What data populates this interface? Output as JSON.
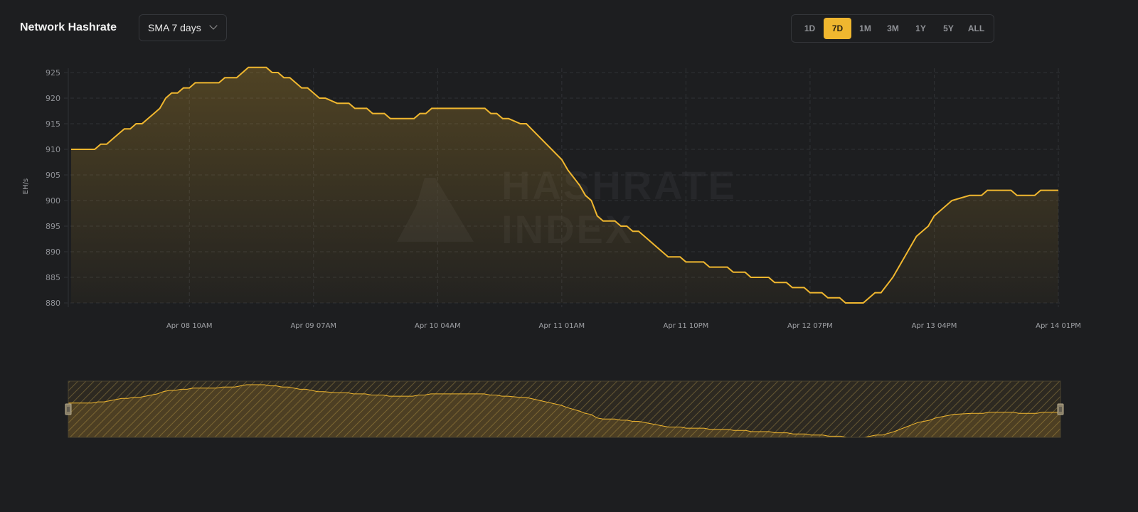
{
  "header": {
    "title": "Network Hashrate",
    "smoothing_select": "SMA 7 days",
    "ranges": [
      "1D",
      "7D",
      "1M",
      "3M",
      "1Y",
      "5Y",
      "ALL"
    ],
    "active_range": "7D"
  },
  "watermark": {
    "line1": "HASHRATE",
    "line2": "INDEX"
  },
  "colors": {
    "accent": "#f0b72f",
    "background": "#1d1e20"
  },
  "chart_data": {
    "type": "area",
    "title": "",
    "xlabel": "",
    "ylabel": "EH/s",
    "ylim": [
      880,
      925
    ],
    "yticks": [
      880,
      885,
      890,
      895,
      900,
      905,
      910,
      915,
      920,
      925
    ],
    "xticks": [
      "Apr 08 10AM",
      "Apr 09 07AM",
      "Apr 10 04AM",
      "Apr 11 01AM",
      "Apr 11 10PM",
      "Apr 12 07PM",
      "Apr 13 04PM",
      "Apr 14 01PM"
    ],
    "xrange": [
      "Apr 07 14:00",
      "Apr 14 13:00"
    ],
    "grid": true,
    "navigator": true,
    "points": [
      [
        "Apr 07 14:00",
        910
      ],
      [
        "Apr 07 18:00",
        910
      ],
      [
        "Apr 07 19:00",
        911
      ],
      [
        "Apr 07 20:00",
        911
      ],
      [
        "Apr 07 22:00",
        913
      ],
      [
        "Apr 07 23:00",
        914
      ],
      [
        "Apr 08 00:00",
        914
      ],
      [
        "Apr 08 01:00",
        915
      ],
      [
        "Apr 08 02:00",
        915
      ],
      [
        "Apr 08 04:00",
        917
      ],
      [
        "Apr 08 05:00",
        918
      ],
      [
        "Apr 08 06:00",
        920
      ],
      [
        "Apr 08 07:00",
        921
      ],
      [
        "Apr 08 08:00",
        921
      ],
      [
        "Apr 08 09:00",
        922
      ],
      [
        "Apr 08 10:00",
        922
      ],
      [
        "Apr 08 11:00",
        923
      ],
      [
        "Apr 08 15:00",
        923
      ],
      [
        "Apr 08 16:00",
        924
      ],
      [
        "Apr 08 18:00",
        924
      ],
      [
        "Apr 08 20:00",
        926
      ],
      [
        "Apr 08 23:00",
        926
      ],
      [
        "Apr 09 00:00",
        925
      ],
      [
        "Apr 09 01:00",
        925
      ],
      [
        "Apr 09 02:00",
        924
      ],
      [
        "Apr 09 03:00",
        924
      ],
      [
        "Apr 09 05:00",
        922
      ],
      [
        "Apr 09 06:00",
        922
      ],
      [
        "Apr 09 08:00",
        920
      ],
      [
        "Apr 09 09:00",
        920
      ],
      [
        "Apr 09 11:00",
        919
      ],
      [
        "Apr 09 13:00",
        919
      ],
      [
        "Apr 09 14:00",
        918
      ],
      [
        "Apr 09 16:00",
        918
      ],
      [
        "Apr 09 17:00",
        917
      ],
      [
        "Apr 09 19:00",
        917
      ],
      [
        "Apr 09 20:00",
        916
      ],
      [
        "Apr 10 00:00",
        916
      ],
      [
        "Apr 10 01:00",
        917
      ],
      [
        "Apr 10 02:00",
        917
      ],
      [
        "Apr 10 03:00",
        918
      ],
      [
        "Apr 10 12:00",
        918
      ],
      [
        "Apr 10 13:00",
        917
      ],
      [
        "Apr 10 14:00",
        917
      ],
      [
        "Apr 10 15:00",
        916
      ],
      [
        "Apr 10 16:00",
        916
      ],
      [
        "Apr 10 18:00",
        915
      ],
      [
        "Apr 10 19:00",
        915
      ],
      [
        "Apr 11 01:00",
        908
      ],
      [
        "Apr 11 02:00",
        906
      ],
      [
        "Apr 11 04:00",
        903
      ],
      [
        "Apr 11 05:00",
        901
      ],
      [
        "Apr 11 06:00",
        900
      ],
      [
        "Apr 11 07:00",
        897
      ],
      [
        "Apr 11 08:00",
        896
      ],
      [
        "Apr 11 10:00",
        896
      ],
      [
        "Apr 11 11:00",
        895
      ],
      [
        "Apr 11 12:00",
        895
      ],
      [
        "Apr 11 13:00",
        894
      ],
      [
        "Apr 11 14:00",
        894
      ],
      [
        "Apr 11 19:00",
        889
      ],
      [
        "Apr 11 21:00",
        889
      ],
      [
        "Apr 11 22:00",
        888
      ],
      [
        "Apr 12 01:00",
        888
      ],
      [
        "Apr 12 02:00",
        887
      ],
      [
        "Apr 12 05:00",
        887
      ],
      [
        "Apr 12 06:00",
        886
      ],
      [
        "Apr 12 08:00",
        886
      ],
      [
        "Apr 12 09:00",
        885
      ],
      [
        "Apr 12 12:00",
        885
      ],
      [
        "Apr 12 13:00",
        884
      ],
      [
        "Apr 12 15:00",
        884
      ],
      [
        "Apr 12 16:00",
        883
      ],
      [
        "Apr 12 18:00",
        883
      ],
      [
        "Apr 12 19:00",
        882
      ],
      [
        "Apr 12 21:00",
        882
      ],
      [
        "Apr 12 22:00",
        881
      ],
      [
        "Apr 13 00:00",
        881
      ],
      [
        "Apr 13 01:00",
        880
      ],
      [
        "Apr 13 04:00",
        880
      ],
      [
        "Apr 13 06:00",
        882
      ],
      [
        "Apr 13 07:00",
        882
      ],
      [
        "Apr 13 09:00",
        885
      ],
      [
        "Apr 13 10:00",
        887
      ],
      [
        "Apr 13 11:00",
        889
      ],
      [
        "Apr 13 12:00",
        891
      ],
      [
        "Apr 13 13:00",
        893
      ],
      [
        "Apr 13 15:00",
        895
      ],
      [
        "Apr 13 16:00",
        897
      ],
      [
        "Apr 13 19:00",
        900
      ],
      [
        "Apr 13 22:00",
        901
      ],
      [
        "Apr 14 00:00",
        901
      ],
      [
        "Apr 14 01:00",
        902
      ],
      [
        "Apr 14 05:00",
        902
      ],
      [
        "Apr 14 06:00",
        901
      ],
      [
        "Apr 14 09:00",
        901
      ],
      [
        "Apr 14 10:00",
        902
      ],
      [
        "Apr 14 13:00",
        902
      ]
    ]
  }
}
